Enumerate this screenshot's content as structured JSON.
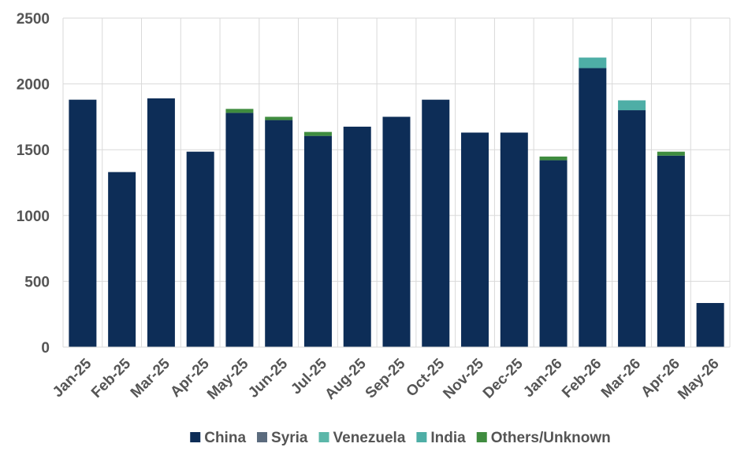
{
  "chart_data": {
    "type": "bar",
    "stacked": true,
    "categories": [
      "Jan-25",
      "Feb-25",
      "Mar-25",
      "Apr-25",
      "May-25",
      "Jun-25",
      "Jul-25",
      "Aug-25",
      "Sep-25",
      "Oct-25",
      "Nov-25",
      "Dec-25",
      "Jan-26",
      "Feb-26",
      "Mar-26",
      "Apr-26",
      "May-26"
    ],
    "series": [
      {
        "name": "China",
        "color": "#0d2d57",
        "values": [
          1880,
          1330,
          1890,
          1485,
          1780,
          1725,
          1605,
          1675,
          1750,
          1880,
          1630,
          1630,
          1420,
          2120,
          1800,
          1455,
          335
        ]
      },
      {
        "name": "Syria",
        "color": "#5b6b7e",
        "values": [
          0,
          0,
          0,
          0,
          0,
          0,
          0,
          0,
          0,
          0,
          0,
          0,
          0,
          0,
          0,
          0,
          0
        ]
      },
      {
        "name": "Venezuela",
        "color": "#5bb7a9",
        "values": [
          0,
          0,
          0,
          0,
          0,
          0,
          0,
          0,
          0,
          0,
          0,
          0,
          0,
          0,
          0,
          0,
          0
        ]
      },
      {
        "name": "India",
        "color": "#4eaea6",
        "values": [
          0,
          0,
          0,
          0,
          0,
          0,
          0,
          0,
          0,
          0,
          0,
          0,
          0,
          80,
          75,
          0,
          0
        ]
      },
      {
        "name": "Others/Unknown",
        "color": "#3f8c3f",
        "values": [
          0,
          0,
          0,
          0,
          30,
          25,
          30,
          0,
          0,
          0,
          0,
          0,
          28,
          0,
          0,
          30,
          0
        ]
      }
    ],
    "yticks": [
      0,
      500,
      1000,
      1500,
      2000,
      2500
    ],
    "ylim": [
      0,
      2500
    ],
    "grid": true,
    "legend_position": "bottom"
  }
}
